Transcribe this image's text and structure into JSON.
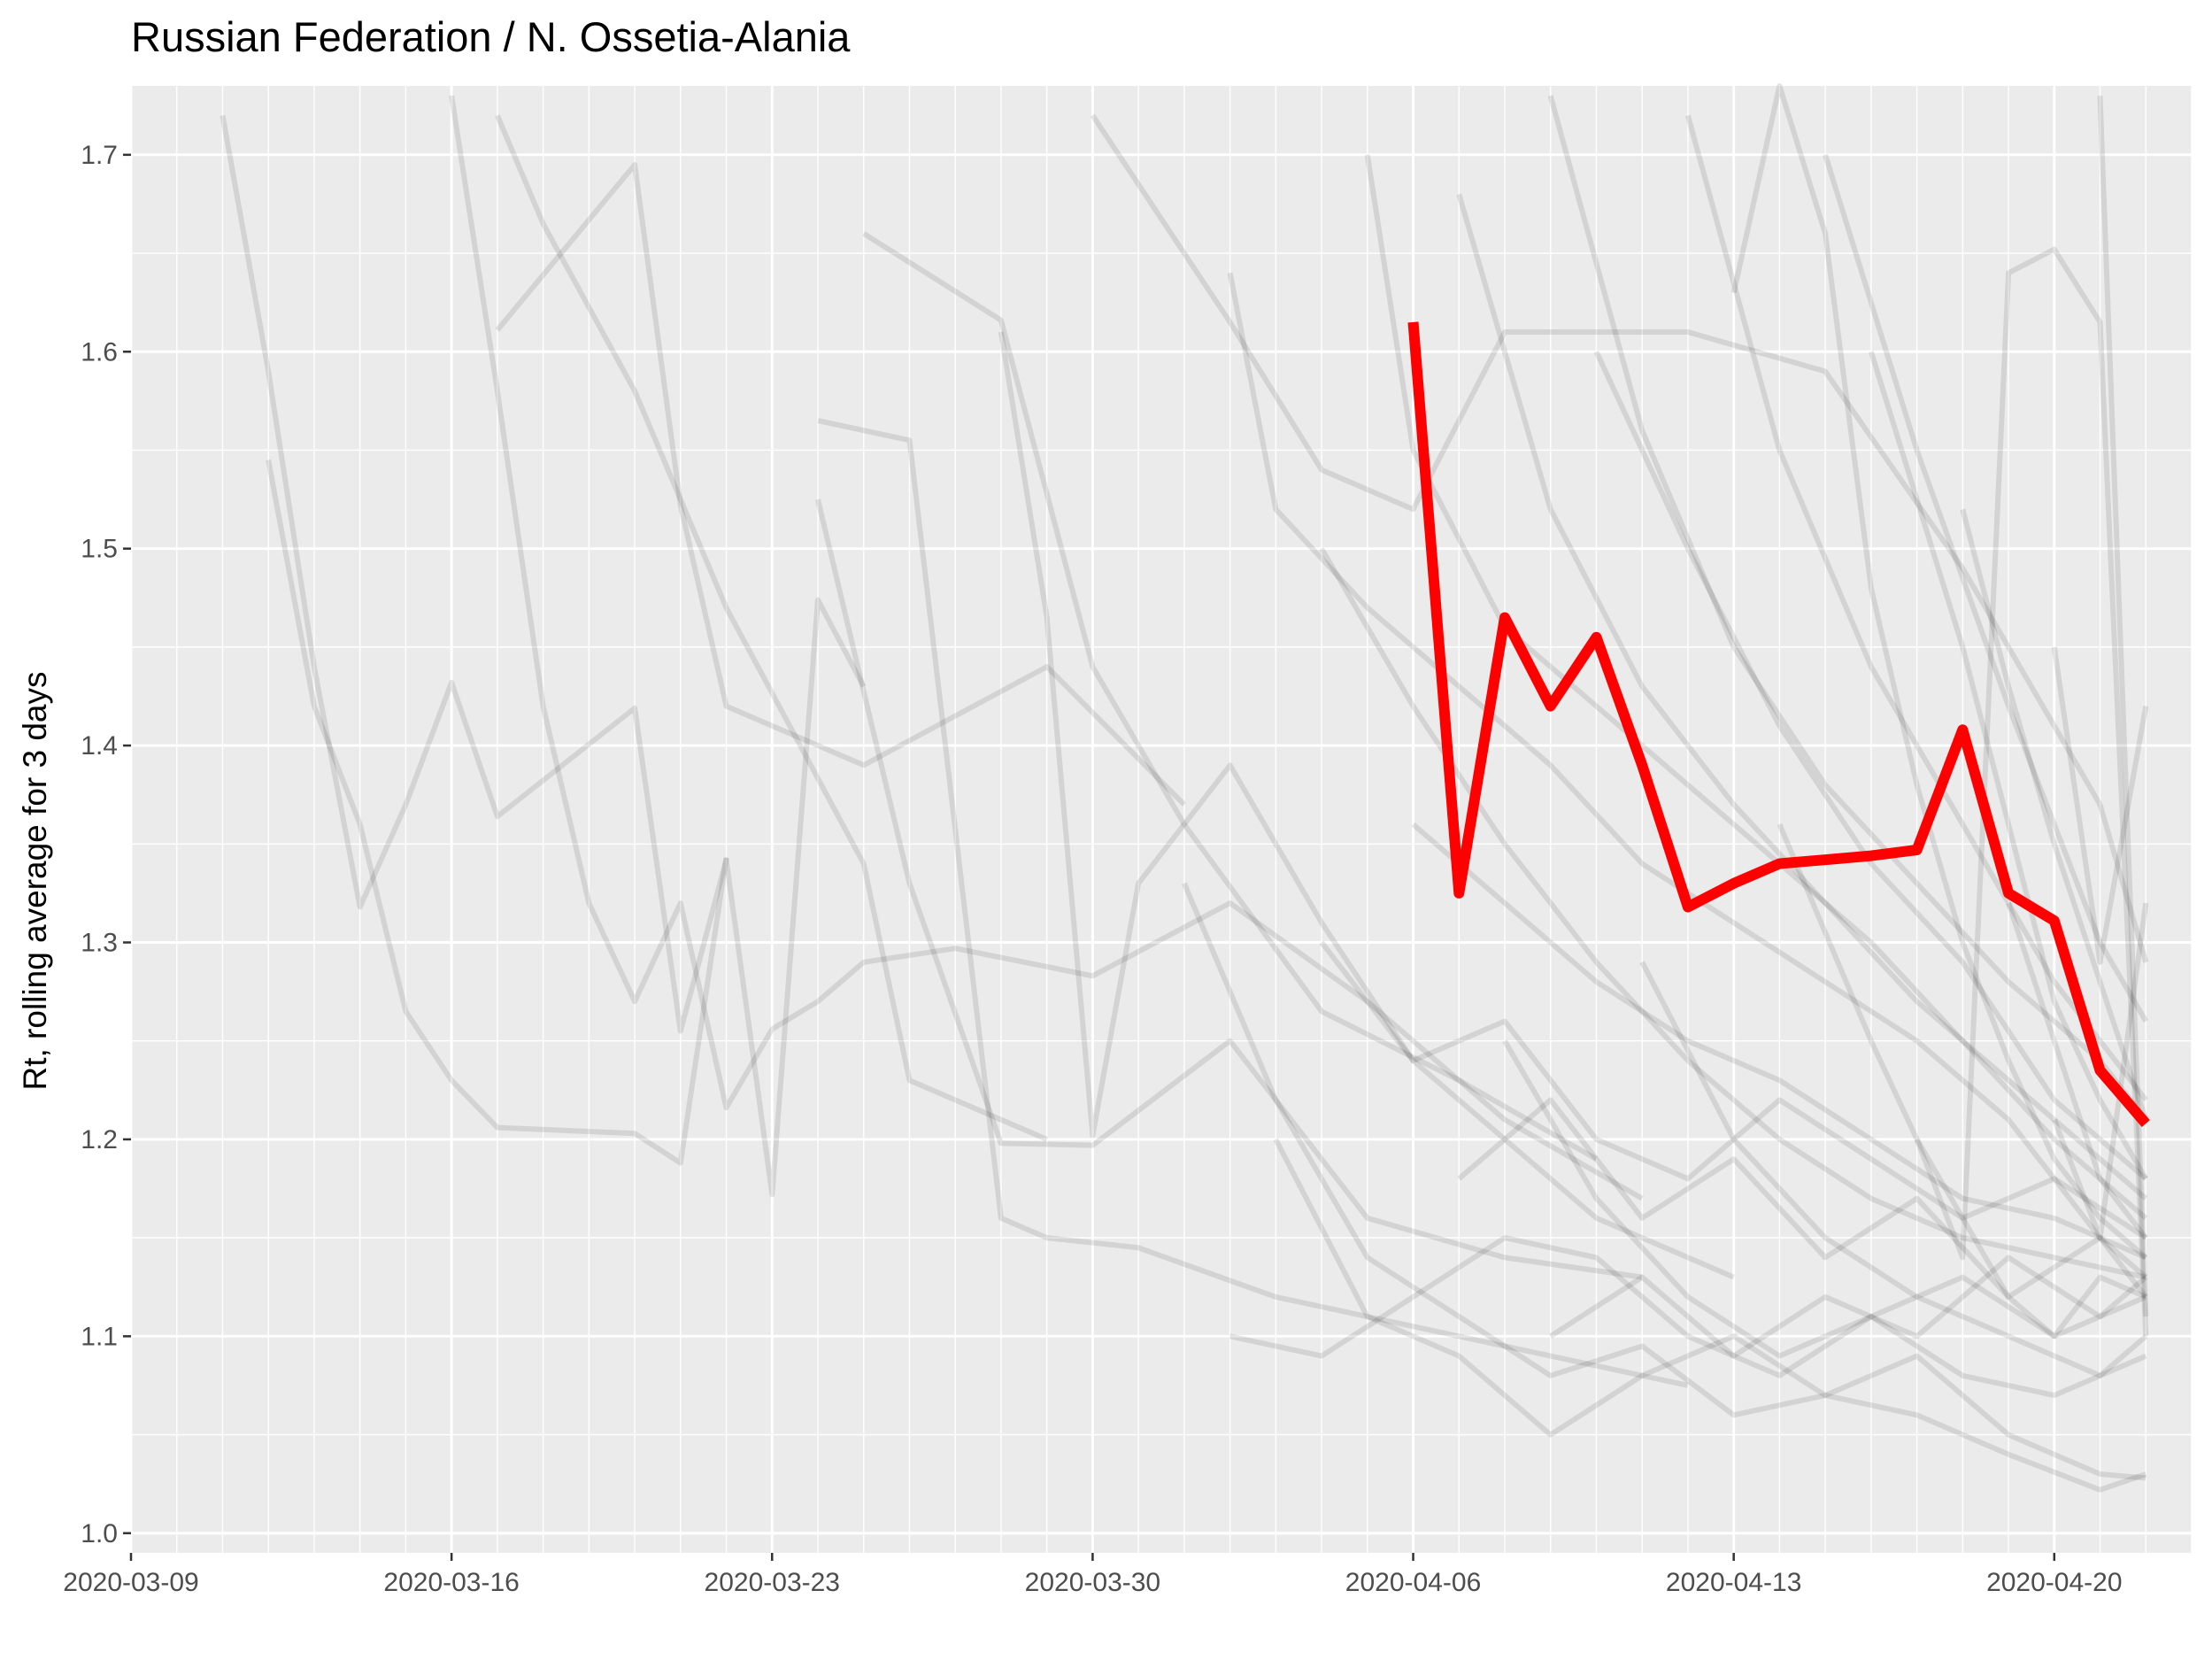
{
  "chart_data": {
    "type": "line",
    "title": "Russian Federation / N. Ossetia-Alania",
    "xlabel": "",
    "ylabel": "Rt, rolling average for 3 days",
    "x_ticks": [
      "2020-03-09",
      "2020-03-16",
      "2020-03-23",
      "2020-03-30",
      "2020-04-06",
      "2020-04-13",
      "2020-04-20"
    ],
    "y_ticks": [
      "1.0",
      "1.1",
      "1.2",
      "1.3",
      "1.4",
      "1.5",
      "1.6",
      "1.7"
    ],
    "xlim": [
      "2020-03-09",
      "2020-04-23"
    ],
    "ylim": [
      0.99,
      1.735
    ],
    "grid": true,
    "highlight_color": "#ff0000",
    "background_color": "#000000",
    "highlight": {
      "x": [
        "2020-04-06",
        "2020-04-07",
        "2020-04-08",
        "2020-04-09",
        "2020-04-10",
        "2020-04-11",
        "2020-04-12",
        "2020-04-13",
        "2020-04-14",
        "2020-04-15",
        "2020-04-16",
        "2020-04-17",
        "2020-04-18",
        "2020-04-19",
        "2020-04-20",
        "2020-04-21",
        "2020-04-22"
      ],
      "values": [
        1.615,
        1.325,
        1.465,
        1.42,
        1.455,
        1.39,
        1.318,
        1.33,
        1.34,
        1.342,
        1.344,
        1.347,
        1.408,
        1.325,
        1.311,
        1.235,
        1.208
      ]
    },
    "background_series": [
      {
        "x": [
          "2020-03-11",
          "2020-03-12",
          "2020-03-13",
          "2020-03-14",
          "2020-03-15",
          "2020-03-16",
          "2020-03-17",
          "2020-03-20",
          "2020-03-21",
          "2020-03-22",
          "2020-03-23",
          "2020-03-24",
          "2020-03-25"
        ],
        "values": [
          1.72,
          1.59,
          1.44,
          1.318,
          1.37,
          1.432,
          1.364,
          1.419,
          1.255,
          1.342,
          1.172,
          1.474,
          1.43
        ]
      },
      {
        "x": [
          "2020-03-12",
          "2020-03-13",
          "2020-03-14",
          "2020-03-15",
          "2020-03-16",
          "2020-03-17",
          "2020-03-20",
          "2020-03-21",
          "2020-03-22"
        ],
        "values": [
          1.545,
          1.42,
          1.36,
          1.265,
          1.23,
          1.206,
          1.203,
          1.188,
          1.343
        ]
      },
      {
        "x": [
          "2020-03-17",
          "2020-03-20",
          "2020-03-21",
          "2020-03-22",
          "2020-03-25",
          "2020-03-29",
          "2020-04-01"
        ],
        "values": [
          1.611,
          1.695,
          1.522,
          1.42,
          1.39,
          1.44,
          1.37
        ]
      },
      {
        "x": [
          "2020-03-17",
          "2020-03-18",
          "2020-03-20",
          "2020-03-22",
          "2020-03-25",
          "2020-03-26",
          "2020-03-29"
        ],
        "values": [
          1.72,
          1.665,
          1.58,
          1.47,
          1.34,
          1.23,
          1.2
        ]
      },
      {
        "x": [
          "2020-03-16",
          "2020-03-17",
          "2020-03-18",
          "2020-03-19",
          "2020-03-20",
          "2020-03-21",
          "2020-03-22",
          "2020-03-23",
          "2020-03-24",
          "2020-03-25",
          "2020-03-27",
          "2020-03-30",
          "2020-04-02",
          "2020-04-05",
          "2020-04-08",
          "2020-04-11"
        ],
        "values": [
          1.73,
          1.58,
          1.42,
          1.32,
          1.27,
          1.32,
          1.216,
          1.256,
          1.27,
          1.29,
          1.297,
          1.283,
          1.32,
          1.27,
          1.21,
          1.17
        ]
      },
      {
        "x": [
          "2020-03-24",
          "2020-03-26",
          "2020-03-28",
          "2020-03-29",
          "2020-03-31",
          "2020-04-03",
          "2020-04-06",
          "2020-04-09",
          "2020-04-12"
        ],
        "values": [
          1.565,
          1.555,
          1.16,
          1.15,
          1.145,
          1.12,
          1.105,
          1.09,
          1.075
        ]
      },
      {
        "x": [
          "2020-03-24",
          "2020-03-26",
          "2020-03-28",
          "2020-03-30",
          "2020-04-02",
          "2020-04-05",
          "2020-04-08",
          "2020-04-11"
        ],
        "values": [
          1.525,
          1.33,
          1.198,
          1.197,
          1.25,
          1.16,
          1.14,
          1.13
        ]
      },
      {
        "x": [
          "2020-03-25",
          "2020-03-28",
          "2020-03-30",
          "2020-04-01",
          "2020-04-04",
          "2020-04-07",
          "2020-04-10"
        ],
        "values": [
          1.66,
          1.616,
          1.44,
          1.36,
          1.265,
          1.23,
          1.19
        ]
      },
      {
        "x": [
          "2020-03-28",
          "2020-03-29",
          "2020-03-30",
          "2020-03-31",
          "2020-04-02",
          "2020-04-04",
          "2020-04-06",
          "2020-04-08",
          "2020-04-10",
          "2020-04-13"
        ],
        "values": [
          1.61,
          1.465,
          1.202,
          1.33,
          1.39,
          1.31,
          1.24,
          1.2,
          1.16,
          1.13
        ]
      },
      {
        "x": [
          "2020-03-30",
          "2020-04-02",
          "2020-04-04",
          "2020-04-06",
          "2020-04-08",
          "2020-04-10",
          "2020-04-12",
          "2020-04-15",
          "2020-04-18",
          "2020-04-21"
        ],
        "values": [
          1.72,
          1.615,
          1.54,
          1.52,
          1.61,
          1.61,
          1.61,
          1.59,
          1.49,
          1.37
        ]
      },
      {
        "x": [
          "2020-04-02",
          "2020-04-03",
          "2020-04-05",
          "2020-04-07",
          "2020-04-09",
          "2020-04-11",
          "2020-04-13",
          "2020-04-15",
          "2020-04-17",
          "2020-04-19",
          "2020-04-20",
          "2020-04-21",
          "2020-04-22"
        ],
        "values": [
          1.64,
          1.52,
          1.47,
          1.43,
          1.39,
          1.34,
          1.31,
          1.28,
          1.25,
          1.21,
          1.18,
          1.15,
          1.12
        ]
      },
      {
        "x": [
          "2020-04-01",
          "2020-04-03",
          "2020-04-05",
          "2020-04-07",
          "2020-04-09",
          "2020-04-11",
          "2020-04-13",
          "2020-04-15",
          "2020-04-17",
          "2020-04-19",
          "2020-04-21",
          "2020-04-22"
        ],
        "values": [
          1.33,
          1.22,
          1.14,
          1.11,
          1.08,
          1.095,
          1.06,
          1.07,
          1.09,
          1.05,
          1.03,
          1.028
        ]
      },
      {
        "x": [
          "2020-04-04",
          "2020-04-06",
          "2020-04-08",
          "2020-04-10",
          "2020-04-12",
          "2020-04-14",
          "2020-04-16",
          "2020-04-18",
          "2020-04-20",
          "2020-04-22"
        ],
        "values": [
          1.5,
          1.42,
          1.35,
          1.29,
          1.24,
          1.2,
          1.17,
          1.15,
          1.14,
          1.13
        ]
      },
      {
        "x": [
          "2020-04-03",
          "2020-04-05",
          "2020-04-07",
          "2020-04-09",
          "2020-04-11",
          "2020-04-13",
          "2020-04-15",
          "2020-04-17",
          "2020-04-19",
          "2020-04-21",
          "2020-04-22"
        ],
        "values": [
          1.2,
          1.11,
          1.09,
          1.05,
          1.08,
          1.1,
          1.07,
          1.06,
          1.04,
          1.022,
          1.03
        ]
      },
      {
        "x": [
          "2020-04-05",
          "2020-04-06",
          "2020-04-08",
          "2020-04-10",
          "2020-04-12",
          "2020-04-14",
          "2020-04-16",
          "2020-04-18",
          "2020-04-20",
          "2020-04-22"
        ],
        "values": [
          1.7,
          1.55,
          1.46,
          1.42,
          1.38,
          1.34,
          1.3,
          1.25,
          1.2,
          1.16
        ]
      },
      {
        "x": [
          "2020-04-07",
          "2020-04-09",
          "2020-04-11",
          "2020-04-13",
          "2020-04-15",
          "2020-04-17",
          "2020-04-19",
          "2020-04-21",
          "2020-04-22"
        ],
        "values": [
          1.68,
          1.52,
          1.43,
          1.37,
          1.32,
          1.27,
          1.23,
          1.19,
          1.17
        ]
      },
      {
        "x": [
          "2020-04-08",
          "2020-04-10",
          "2020-04-12",
          "2020-04-14",
          "2020-04-16",
          "2020-04-18",
          "2020-04-20",
          "2020-04-22"
        ],
        "values": [
          1.25,
          1.17,
          1.12,
          1.09,
          1.11,
          1.08,
          1.07,
          1.09
        ]
      },
      {
        "x": [
          "2020-04-09",
          "2020-04-11",
          "2020-04-13",
          "2020-04-15",
          "2020-04-17",
          "2020-04-19",
          "2020-04-21",
          "2020-04-22"
        ],
        "values": [
          1.73,
          1.56,
          1.45,
          1.38,
          1.33,
          1.28,
          1.24,
          1.21
        ]
      },
      {
        "x": [
          "2020-04-10",
          "2020-04-12",
          "2020-04-14",
          "2020-04-16",
          "2020-04-18",
          "2020-04-20",
          "2020-04-22"
        ],
        "values": [
          1.6,
          1.5,
          1.41,
          1.34,
          1.29,
          1.22,
          1.18
        ]
      },
      {
        "x": [
          "2020-04-11",
          "2020-04-13",
          "2020-04-15",
          "2020-04-17",
          "2020-04-19",
          "2020-04-21",
          "2020-04-22"
        ],
        "values": [
          1.29,
          1.2,
          1.15,
          1.12,
          1.1,
          1.08,
          1.1
        ]
      },
      {
        "x": [
          "2020-04-12",
          "2020-04-14",
          "2020-04-16",
          "2020-04-18",
          "2020-04-20",
          "2020-04-22"
        ],
        "values": [
          1.72,
          1.55,
          1.44,
          1.36,
          1.28,
          1.22
        ]
      },
      {
        "x": [
          "2020-04-13",
          "2020-04-14",
          "2020-04-15",
          "2020-04-16",
          "2020-04-17",
          "2020-04-18",
          "2020-04-19",
          "2020-04-20",
          "2020-04-21",
          "2020-04-22"
        ],
        "values": [
          1.63,
          1.735,
          1.66,
          1.48,
          1.38,
          1.3,
          1.24,
          1.19,
          1.16,
          1.14
        ]
      },
      {
        "x": [
          "2020-04-14",
          "2020-04-16",
          "2020-04-17",
          "2020-04-18",
          "2020-04-19",
          "2020-04-20",
          "2020-04-21",
          "2020-04-22"
        ],
        "values": [
          1.36,
          1.25,
          1.2,
          1.16,
          1.12,
          1.1,
          1.13,
          1.12
        ]
      },
      {
        "x": [
          "2020-04-15",
          "2020-04-17",
          "2020-04-19",
          "2020-04-20",
          "2020-04-21",
          "2020-04-22"
        ],
        "values": [
          1.7,
          1.55,
          1.42,
          1.36,
          1.3,
          1.26
        ]
      },
      {
        "x": [
          "2020-04-16",
          "2020-04-18",
          "2020-04-19",
          "2020-04-20",
          "2020-04-21",
          "2020-04-22"
        ],
        "values": [
          1.6,
          1.45,
          1.36,
          1.27,
          1.22,
          1.18
        ]
      },
      {
        "x": [
          "2020-04-17",
          "2020-04-18",
          "2020-04-19",
          "2020-04-20",
          "2020-04-21",
          "2020-04-22"
        ],
        "values": [
          1.2,
          1.14,
          1.64,
          1.652,
          1.615,
          1.1
        ]
      },
      {
        "x": [
          "2020-04-18",
          "2020-04-19",
          "2020-04-20",
          "2020-04-21",
          "2020-04-22"
        ],
        "values": [
          1.52,
          1.43,
          1.35,
          1.28,
          1.21
        ]
      },
      {
        "x": [
          "2020-04-19",
          "2020-04-20",
          "2020-04-21",
          "2020-04-22"
        ],
        "values": [
          1.32,
          1.25,
          1.18,
          1.15
        ]
      },
      {
        "x": [
          "2020-04-20",
          "2020-04-21",
          "2020-04-22"
        ],
        "values": [
          1.45,
          1.29,
          1.42
        ]
      },
      {
        "x": [
          "2020-04-20",
          "2020-04-21",
          "2020-04-22"
        ],
        "values": [
          1.21,
          1.15,
          1.32
        ]
      },
      {
        "x": [
          "2020-04-21",
          "2020-04-22"
        ],
        "values": [
          1.73,
          1.11
        ]
      },
      {
        "x": [
          "2020-04-21",
          "2020-04-22"
        ],
        "values": [
          1.37,
          1.29
        ]
      },
      {
        "x": [
          "2020-04-02",
          "2020-04-04",
          "2020-04-06",
          "2020-04-08",
          "2020-04-10",
          "2020-04-12",
          "2020-04-14",
          "2020-04-16",
          "2020-04-18",
          "2020-04-20",
          "2020-04-22"
        ],
        "values": [
          1.1,
          1.09,
          1.12,
          1.15,
          1.14,
          1.1,
          1.08,
          1.11,
          1.13,
          1.1,
          1.12
        ]
      },
      {
        "x": [
          "2020-04-04",
          "2020-04-06",
          "2020-04-08",
          "2020-04-10",
          "2020-04-12",
          "2020-04-14",
          "2020-04-16",
          "2020-04-18",
          "2020-04-20",
          "2020-04-22"
        ],
        "values": [
          1.3,
          1.24,
          1.26,
          1.2,
          1.18,
          1.22,
          1.19,
          1.16,
          1.18,
          1.15
        ]
      },
      {
        "x": [
          "2020-04-06",
          "2020-04-08",
          "2020-04-10",
          "2020-04-12",
          "2020-04-14",
          "2020-04-16",
          "2020-04-18",
          "2020-04-20",
          "2020-04-22"
        ],
        "values": [
          1.36,
          1.32,
          1.28,
          1.25,
          1.23,
          1.2,
          1.17,
          1.16,
          1.14
        ]
      },
      {
        "x": [
          "2020-04-07",
          "2020-04-09",
          "2020-04-11",
          "2020-04-13",
          "2020-04-15",
          "2020-04-17",
          "2020-04-19",
          "2020-04-21",
          "2020-04-22"
        ],
        "values": [
          1.18,
          1.22,
          1.16,
          1.19,
          1.14,
          1.17,
          1.12,
          1.15,
          1.13
        ]
      },
      {
        "x": [
          "2020-04-09",
          "2020-04-11",
          "2020-04-13",
          "2020-04-15",
          "2020-04-17",
          "2020-04-19",
          "2020-04-21",
          "2020-04-22"
        ],
        "values": [
          1.1,
          1.13,
          1.09,
          1.12,
          1.1,
          1.14,
          1.11,
          1.13
        ]
      }
    ]
  }
}
